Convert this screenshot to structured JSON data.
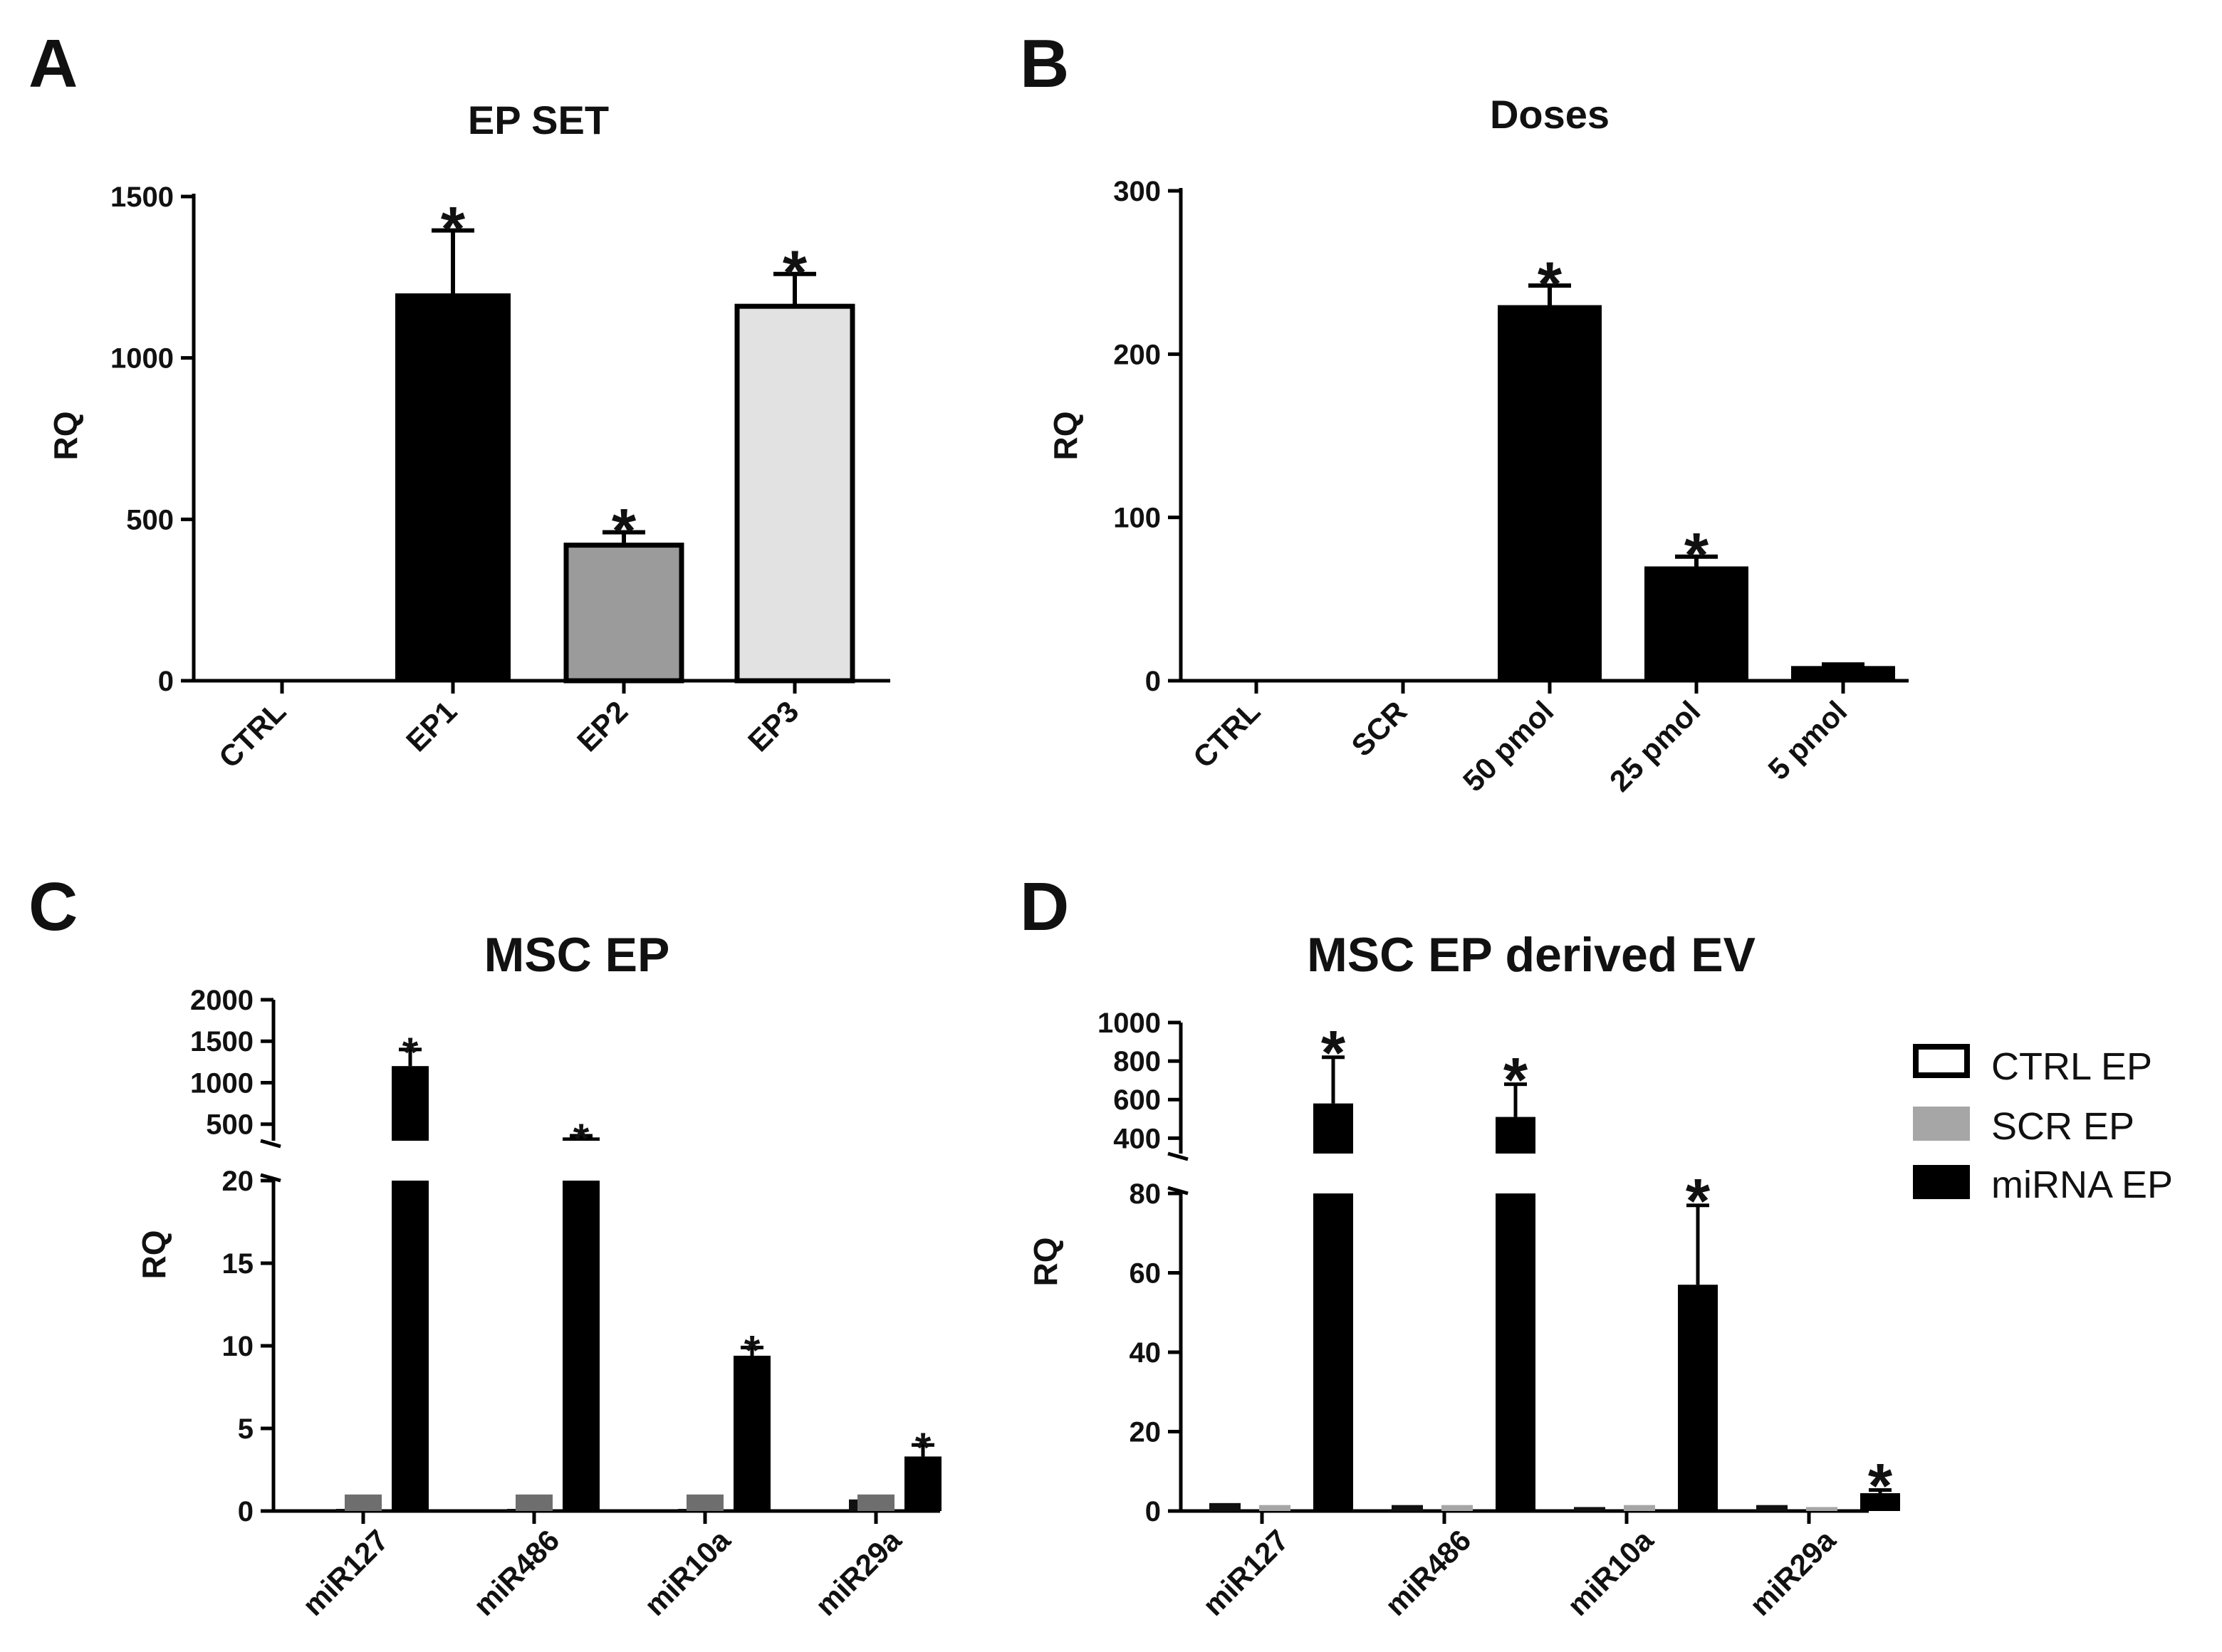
{
  "chart_data": [
    {
      "id": "A",
      "panel_label": "A",
      "type": "bar",
      "title": "EP SET",
      "ylabel": "RQ",
      "ylim": [
        0,
        1500
      ],
      "yticks": [
        0,
        500,
        1000,
        1500
      ],
      "categories": [
        "CTRL",
        "EP1",
        "EP2",
        "EP3"
      ],
      "values": [
        0,
        1200,
        420,
        1160
      ],
      "errors": [
        0,
        195,
        40,
        100
      ],
      "significant": [
        false,
        true,
        true,
        true
      ],
      "colors": [
        "#000000",
        "#000000",
        "#9b9b9b",
        "#e2e2e2"
      ],
      "significance_marker": "*"
    },
    {
      "id": "B",
      "panel_label": "B",
      "type": "bar",
      "title": "Doses",
      "ylabel": "RQ",
      "ylim": [
        0,
        300
      ],
      "yticks": [
        0,
        100,
        200,
        300
      ],
      "categories": [
        "CTRL",
        "SCR",
        "50 pmol",
        "25 pmol",
        "5 pmol"
      ],
      "values": [
        1,
        1,
        230,
        70,
        9
      ],
      "errors": [
        0,
        0,
        12,
        6,
        1
      ],
      "significant": [
        false,
        false,
        true,
        true,
        false
      ],
      "colors": [
        "#000000",
        "#000000",
        "#000000",
        "#000000",
        "#000000"
      ],
      "significance_marker": "*"
    },
    {
      "id": "C",
      "panel_label": "C",
      "type": "bar",
      "title": "MSC EP",
      "ylabel": "RQ",
      "broken_axis": true,
      "lower_ylim": [
        0,
        20
      ],
      "lower_yticks": [
        0,
        5,
        10,
        15,
        20
      ],
      "upper_ylim": [
        300,
        2000
      ],
      "upper_yticks": [
        500,
        1000,
        1500,
        2000
      ],
      "categories": [
        "miR127",
        "miR486",
        "miR10a",
        "miR29a"
      ],
      "series": [
        {
          "name": "CTRL EP",
          "values": [
            0.05,
            0.05,
            0.05,
            0.7
          ],
          "errors": [
            0,
            0,
            0,
            0
          ]
        },
        {
          "name": "SCR EP",
          "values": [
            1.0,
            1.0,
            1.0,
            1.0
          ],
          "errors": [
            0,
            0,
            0,
            0
          ]
        },
        {
          "name": "miRNA EP",
          "values": [
            1200,
            340,
            9.4,
            3.3
          ],
          "errors": [
            200,
            20,
            0.5,
            0.7
          ]
        }
      ],
      "significant_series_index": 2,
      "significance_marker": "*"
    },
    {
      "id": "D",
      "panel_label": "D",
      "type": "bar",
      "title": "MSC EP derived EV",
      "ylabel": "RQ",
      "broken_axis": true,
      "lower_ylim": [
        0,
        80
      ],
      "lower_yticks": [
        0,
        20,
        40,
        60,
        80
      ],
      "upper_ylim": [
        320,
        1000
      ],
      "upper_yticks": [
        400,
        600,
        800,
        1000
      ],
      "categories": [
        "miR127",
        "miR486",
        "miR10a",
        "miR29a"
      ],
      "series": [
        {
          "name": "CTRL EP",
          "values": [
            2,
            1.5,
            1,
            1.5
          ],
          "errors": [
            0.5,
            0.5,
            0.3,
            0.4
          ]
        },
        {
          "name": "SCR EP",
          "values": [
            1.5,
            1.5,
            1.5,
            1
          ],
          "errors": [
            0.4,
            0.4,
            0.4,
            0.3
          ]
        },
        {
          "name": "miRNA EP",
          "values": [
            580,
            510,
            57,
            4.5
          ],
          "errors": [
            240,
            170,
            20,
            0.8
          ]
        }
      ],
      "significant_series_index": 2,
      "significance_marker": "*"
    }
  ],
  "legend": {
    "items": [
      {
        "label": "CTRL EP",
        "fill": "#ffffff",
        "stroke": "#000000"
      },
      {
        "label": "SCR EP",
        "fill": "#a6a6a6",
        "stroke": "#a6a6a6"
      },
      {
        "label": "miRNA EP",
        "fill": "#000000",
        "stroke": "#000000"
      }
    ]
  },
  "series_colors": {
    "C": [
      "#111111",
      "#6e6e6e",
      "#000000"
    ],
    "D": [
      "#111111",
      "#a6a6a6",
      "#000000"
    ]
  }
}
